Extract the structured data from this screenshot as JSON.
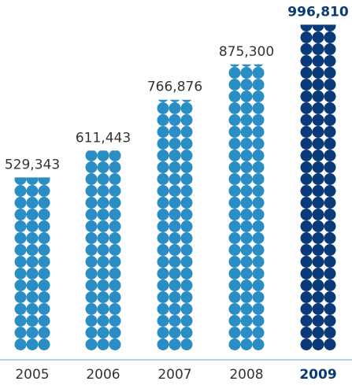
{
  "chart_data": {
    "type": "bar",
    "categories": [
      "2005",
      "2006",
      "2007",
      "2008",
      "2009"
    ],
    "values": [
      529343,
      611443,
      766876,
      875300,
      996810
    ],
    "value_labels": [
      "529,343",
      "611,443",
      "766,876",
      "875,300",
      "996,810"
    ],
    "highlight_index": 4,
    "ylim": [
      0,
      1000000
    ],
    "grid": false,
    "mark_style": "stacked dots",
    "colors": {
      "bar": "#2a8ec4",
      "highlight": "#0b3a78",
      "axis": "#8fc7dd",
      "text": "#333333"
    }
  }
}
